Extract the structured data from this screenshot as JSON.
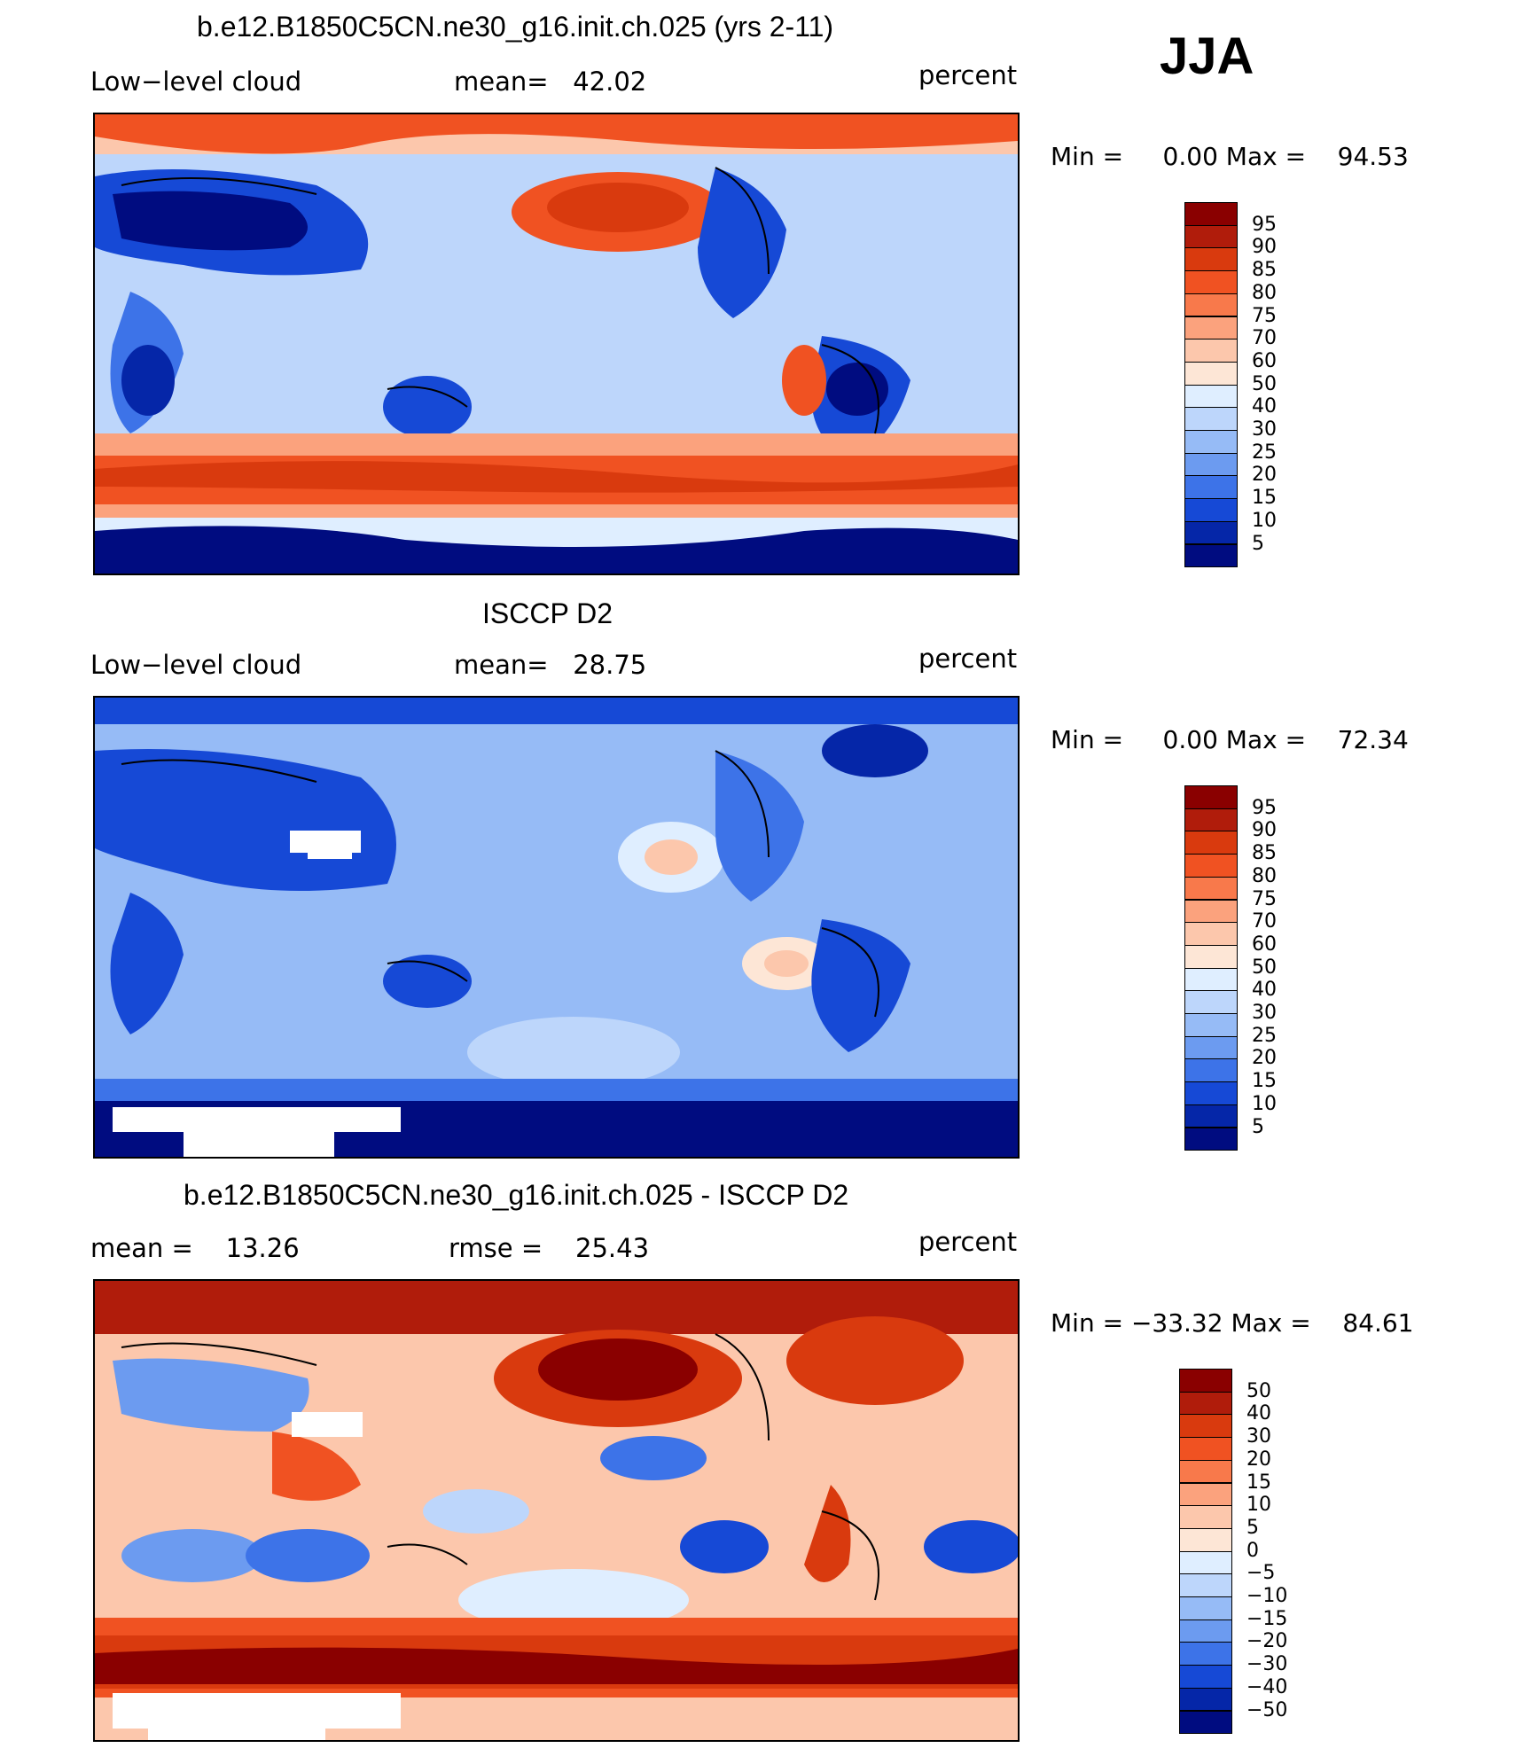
{
  "header": {
    "season": "JJA"
  },
  "panels": [
    {
      "title": "b.e12.B1850C5CN.ne30_g16.init.ch.025 (yrs 2-11)",
      "left": "Low−level cloud",
      "center": "mean=   42.02",
      "right": "percent",
      "minmax": "Min =     0.00 Max =    94.53",
      "colorbar": {
        "labels": [
          "95",
          "90",
          "85",
          "80",
          "75",
          "70",
          "60",
          "50",
          "40",
          "30",
          "25",
          "20",
          "15",
          "10",
          "5"
        ],
        "colors": [
          "#8a0000",
          "#b01c0b",
          "#d93a0e",
          "#f05222",
          "#f8794b",
          "#fba27d",
          "#fcc7ac",
          "#fde6d6",
          "#dfeeff",
          "#bdd6fb",
          "#96bbf6",
          "#6c9bf0",
          "#3d73e8",
          "#1649d6",
          "#0526a8",
          "#000c80"
        ]
      }
    },
    {
      "title": "ISCCP D2",
      "left": "Low−level cloud",
      "center": "mean=   28.75",
      "right": "percent",
      "minmax": "Min =     0.00 Max =    72.34",
      "colorbar": {
        "labels": [
          "95",
          "90",
          "85",
          "80",
          "75",
          "70",
          "60",
          "50",
          "40",
          "30",
          "25",
          "20",
          "15",
          "10",
          "5"
        ],
        "colors": [
          "#8a0000",
          "#b01c0b",
          "#d93a0e",
          "#f05222",
          "#f8794b",
          "#fba27d",
          "#fcc7ac",
          "#fde6d6",
          "#dfeeff",
          "#bdd6fb",
          "#96bbf6",
          "#6c9bf0",
          "#3d73e8",
          "#1649d6",
          "#0526a8",
          "#000c80"
        ]
      }
    },
    {
      "title": "b.e12.B1850C5CN.ne30_g16.init.ch.025 - ISCCP D2",
      "left": "mean =    13.26",
      "center": "rmse =    25.43",
      "right": "percent",
      "minmax": "Min = −33.32 Max =    84.61",
      "colorbar": {
        "labels": [
          "50",
          "40",
          "30",
          "20",
          "15",
          "10",
          "5",
          "0",
          "−5",
          "−10",
          "−15",
          "−20",
          "−30",
          "−40",
          "−50"
        ],
        "colors": [
          "#8a0000",
          "#b01c0b",
          "#d93a0e",
          "#f05222",
          "#f8794b",
          "#fba27d",
          "#fcc7ac",
          "#fde6d6",
          "#dfeeff",
          "#bdd6fb",
          "#96bbf6",
          "#6c9bf0",
          "#3d73e8",
          "#1649d6",
          "#0526a8",
          "#000c80"
        ]
      }
    }
  ]
}
